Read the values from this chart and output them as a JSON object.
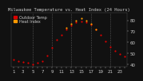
{
  "bg_color": "#111111",
  "plot_bg_color": "#111111",
  "grid_color": "#555555",
  "temp_color": "#dd0000",
  "heat_color": "#ff9900",
  "text_color": "#cccccc",
  "hours": [
    1,
    2,
    3,
    4,
    5,
    6,
    7,
    8,
    9,
    10,
    11,
    12,
    13,
    14,
    15,
    16,
    17,
    18,
    19,
    20,
    21,
    22,
    23,
    24
  ],
  "temp_values": [
    44,
    43,
    42,
    41,
    40,
    41,
    43,
    48,
    55,
    62,
    67,
    72,
    75,
    78,
    79,
    78,
    76,
    72,
    67,
    61,
    56,
    52,
    49,
    47
  ],
  "heat_values": [
    null,
    null,
    null,
    null,
    null,
    null,
    null,
    null,
    null,
    null,
    null,
    73,
    77,
    80,
    82,
    80,
    77,
    72,
    null,
    null,
    null,
    null,
    null,
    null
  ],
  "ylim": [
    38,
    87
  ],
  "yticks": [
    40,
    50,
    60,
    70,
    80
  ],
  "ytick_labels": [
    "40",
    "50",
    "60",
    "70",
    "80"
  ],
  "grid_hours": [
    5,
    9,
    13,
    17,
    21
  ],
  "xtick_hours": [
    1,
    3,
    5,
    7,
    9,
    11,
    13,
    15,
    17,
    19,
    21,
    23
  ],
  "title": "Milwaukee Temperature vs. Heat Index (24 Hours)",
  "legend_temp": "Outdoor Temp",
  "legend_heat": "Heat Index",
  "title_fontsize": 4.0,
  "tick_fontsize": 4.0,
  "legend_fontsize": 3.5,
  "dot_size": 2.5
}
